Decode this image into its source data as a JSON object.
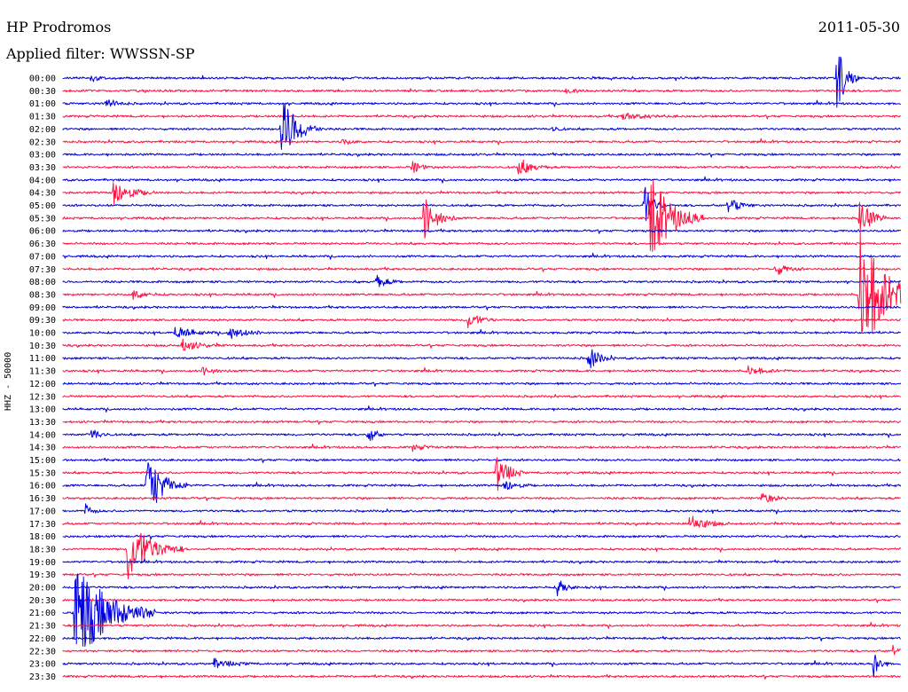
{
  "header": {
    "station": "HP Prodromos",
    "filter": "Applied filter: WWSSN-SP",
    "date": "2011-05-30"
  },
  "chart_data": {
    "type": "helicorder",
    "channel_label": "HHZ - 50000",
    "row_labels": [
      "00:00",
      "00:30",
      "01:00",
      "01:30",
      "02:00",
      "02:30",
      "03:00",
      "03:30",
      "04:00",
      "04:30",
      "05:00",
      "05:30",
      "06:00",
      "06:30",
      "07:00",
      "07:30",
      "08:00",
      "08:30",
      "09:00",
      "09:30",
      "10:00",
      "10:30",
      "11:00",
      "11:30",
      "12:00",
      "12:30",
      "13:00",
      "13:30",
      "14:00",
      "14:30",
      "15:00",
      "15:30",
      "16:00",
      "16:30",
      "17:00",
      "17:30",
      "18:00",
      "18:30",
      "19:00",
      "19:30",
      "20:00",
      "20:30",
      "21:00",
      "21:30",
      "22:00",
      "22:30",
      "23:00",
      "23:30"
    ],
    "row_minutes": 30,
    "trace_colors": [
      "#0000dd",
      "#ff1140"
    ],
    "events": [
      {
        "row": 0,
        "minute": 1,
        "amp": 0.4,
        "dur": 0.8
      },
      {
        "row": 1,
        "minute": 18,
        "amp": 0.2,
        "dur": 1
      },
      {
        "row": 2,
        "minute": 1.5,
        "amp": 0.5,
        "dur": 1
      },
      {
        "row": 0,
        "minute": 27.7,
        "amp": 3.5,
        "dur": 0.8
      },
      {
        "row": 3,
        "minute": 20,
        "amp": 0.3,
        "dur": 2
      },
      {
        "row": 4,
        "minute": 7.8,
        "amp": 3.0,
        "dur": 1.5
      },
      {
        "row": 4,
        "minute": 17.5,
        "amp": 0.3,
        "dur": 0.6
      },
      {
        "row": 5,
        "minute": 10,
        "amp": 0.3,
        "dur": 0.8
      },
      {
        "row": 7,
        "minute": 12.5,
        "amp": 0.6,
        "dur": 0.8
      },
      {
        "row": 7,
        "minute": 16.3,
        "amp": 0.8,
        "dur": 1.2
      },
      {
        "row": 9,
        "minute": 1.8,
        "amp": 1.2,
        "dur": 1.5
      },
      {
        "row": 10,
        "minute": 20.8,
        "amp": 2.0,
        "dur": 0.8
      },
      {
        "row": 10,
        "minute": 23.8,
        "amp": 0.8,
        "dur": 1.0
      },
      {
        "row": 11,
        "minute": 12.9,
        "amp": 2.0,
        "dur": 1.2
      },
      {
        "row": 11,
        "minute": 21.0,
        "amp": 4.0,
        "dur": 2.0
      },
      {
        "row": 11,
        "minute": 28.5,
        "amp": 2.0,
        "dur": 1.0
      },
      {
        "row": 15,
        "minute": 25.5,
        "amp": 0.6,
        "dur": 1.0
      },
      {
        "row": 16,
        "minute": 11.2,
        "amp": 0.6,
        "dur": 1.0
      },
      {
        "row": 17,
        "minute": 2.5,
        "amp": 0.5,
        "dur": 1.0
      },
      {
        "row": 17,
        "minute": 28.5,
        "amp": 6.0,
        "dur": 2.5
      },
      {
        "row": 19,
        "minute": 14.5,
        "amp": 0.8,
        "dur": 1.0
      },
      {
        "row": 20,
        "minute": 4.0,
        "amp": 0.6,
        "dur": 1.5
      },
      {
        "row": 20,
        "minute": 5.9,
        "amp": 0.6,
        "dur": 1.5
      },
      {
        "row": 21,
        "minute": 4.2,
        "amp": 0.6,
        "dur": 1.5
      },
      {
        "row": 22,
        "minute": 18.8,
        "amp": 1.2,
        "dur": 1.0
      },
      {
        "row": 23,
        "minute": 5.0,
        "amp": 0.4,
        "dur": 1.0
      },
      {
        "row": 23,
        "minute": 24.5,
        "amp": 0.4,
        "dur": 1.5
      },
      {
        "row": 28,
        "minute": 1.0,
        "amp": 0.6,
        "dur": 0.8
      },
      {
        "row": 28,
        "minute": 10.9,
        "amp": 1.2,
        "dur": 0.6
      },
      {
        "row": 29,
        "minute": 12.5,
        "amp": 0.3,
        "dur": 1.0
      },
      {
        "row": 31,
        "minute": 15.5,
        "amp": 2.0,
        "dur": 1.0
      },
      {
        "row": 32,
        "minute": 3.0,
        "amp": 3.0,
        "dur": 1.5
      },
      {
        "row": 32,
        "minute": 15.8,
        "amp": 0.6,
        "dur": 1.0
      },
      {
        "row": 33,
        "minute": 25.0,
        "amp": 0.6,
        "dur": 1.0
      },
      {
        "row": 34,
        "minute": 0.8,
        "amp": 0.6,
        "dur": 0.6
      },
      {
        "row": 35,
        "minute": 22.4,
        "amp": 0.8,
        "dur": 1.5
      },
      {
        "row": 37,
        "minute": 2.3,
        "amp": 3.0,
        "dur": 2.0
      },
      {
        "row": 40,
        "minute": 17.7,
        "amp": 0.8,
        "dur": 0.8
      },
      {
        "row": 42,
        "minute": 0.4,
        "amp": 5.0,
        "dur": 3.0
      },
      {
        "row": 46,
        "minute": 5.4,
        "amp": 0.4,
        "dur": 1.5
      },
      {
        "row": 46,
        "minute": 29.0,
        "amp": 1.5,
        "dur": 0.6
      },
      {
        "row": 45,
        "minute": 29.7,
        "amp": 0.6,
        "dur": 0.5
      }
    ]
  }
}
